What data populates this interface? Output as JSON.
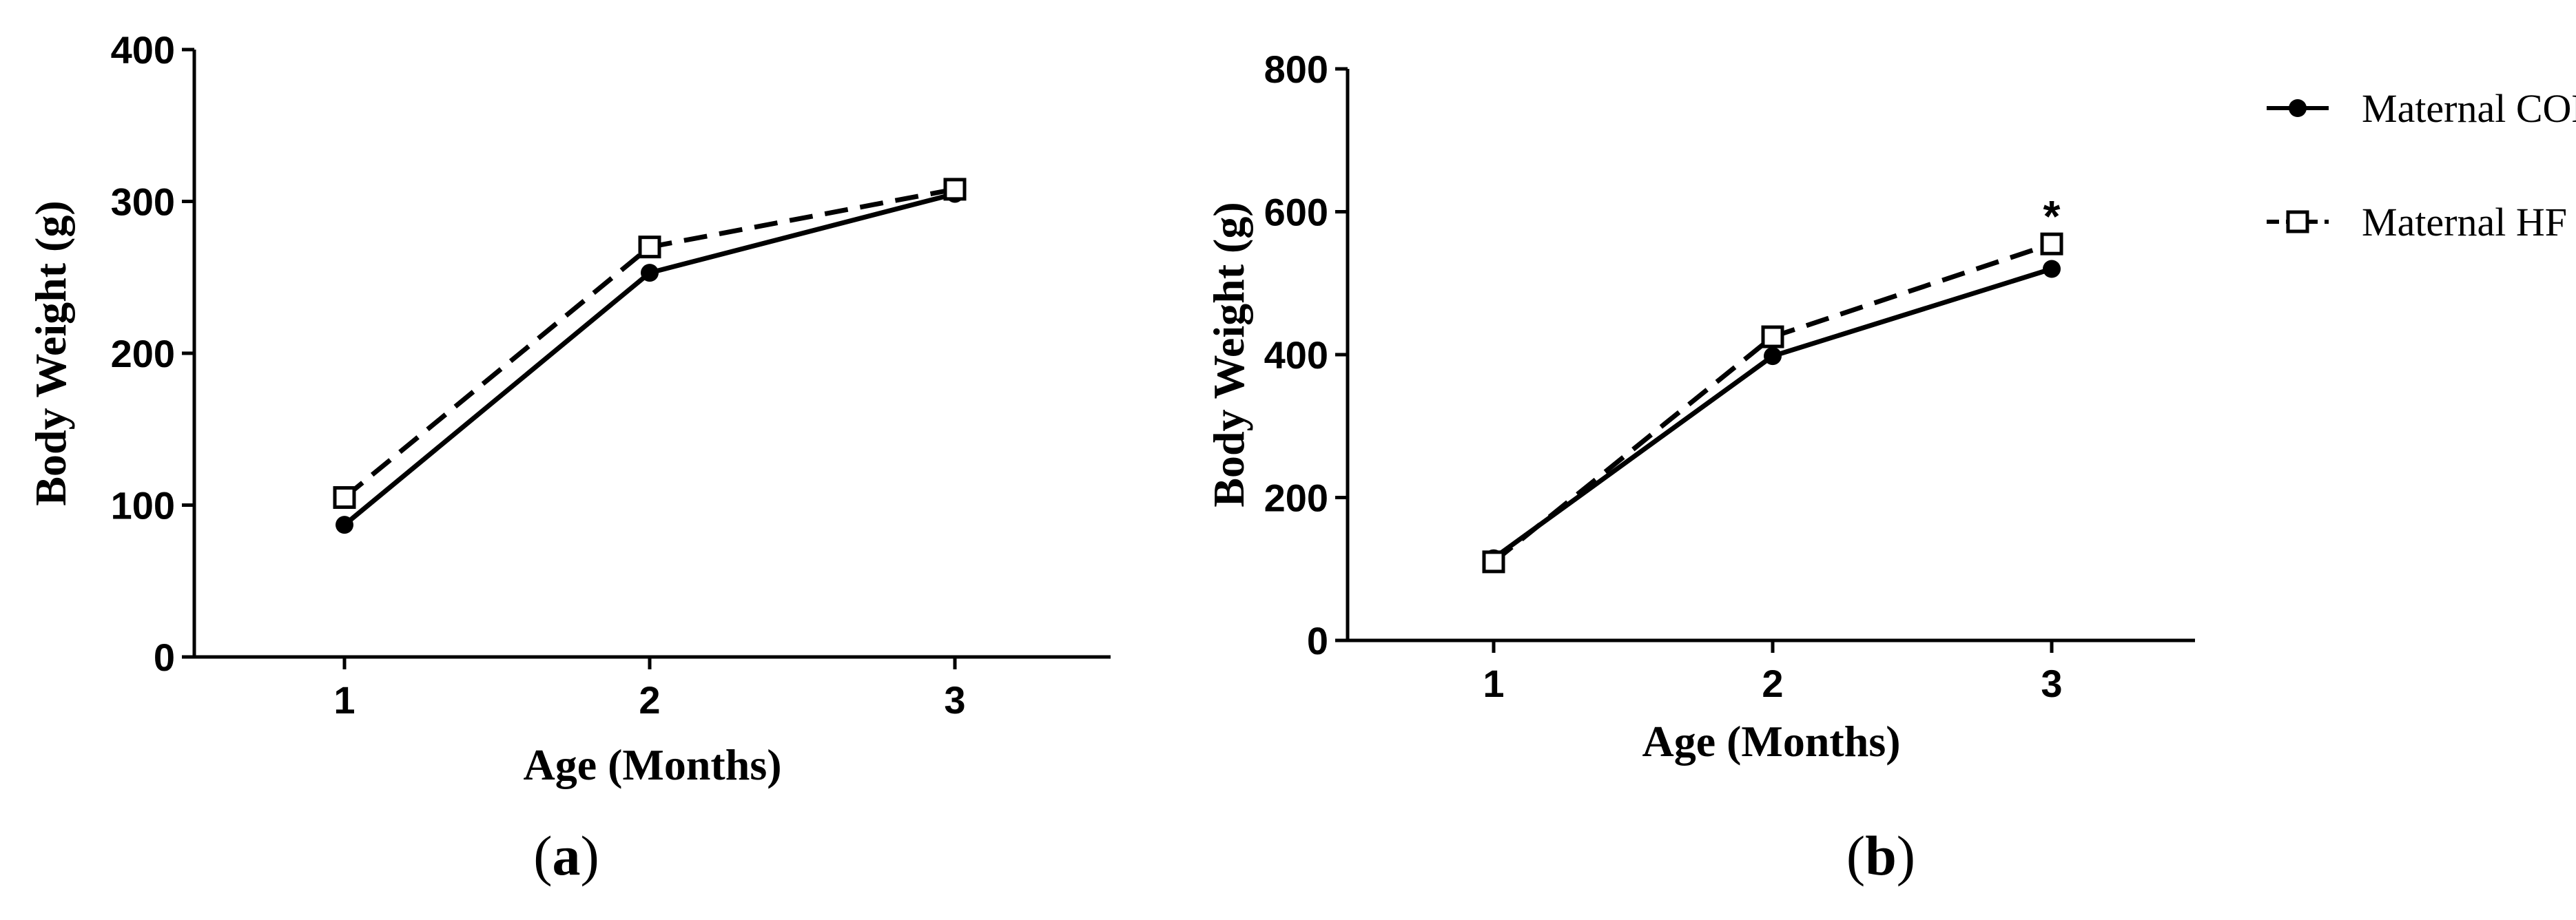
{
  "chart_data": [
    {
      "type": "line",
      "panel_label": "a",
      "x": [
        1,
        2,
        3
      ],
      "xlabel": "Age (Months)",
      "ylabel": "Body Weight (g)",
      "ylim": [
        0,
        400
      ],
      "yticks": [
        0,
        100,
        200,
        300,
        400
      ],
      "xticks": [
        1,
        2,
        3
      ],
      "series": [
        {
          "name": "Maternal CON",
          "values": [
            87,
            253,
            305
          ],
          "marker": "filled-circle",
          "line": "solid"
        },
        {
          "name": "Maternal HF",
          "values": [
            105,
            270,
            308
          ],
          "marker": "open-square",
          "line": "dashed"
        }
      ],
      "annotations": []
    },
    {
      "type": "line",
      "panel_label": "b",
      "x": [
        1,
        2,
        3
      ],
      "xlabel": "Age (Months)",
      "ylabel": "Body Weight (g)",
      "ylim": [
        0,
        800
      ],
      "yticks": [
        0,
        200,
        400,
        600,
        800
      ],
      "xticks": [
        1,
        2,
        3
      ],
      "series": [
        {
          "name": "Maternal CON",
          "values": [
            115,
            398,
            520
          ],
          "marker": "filled-circle",
          "line": "solid"
        },
        {
          "name": "Maternal HF",
          "values": [
            110,
            425,
            555
          ],
          "marker": "open-square",
          "line": "dashed"
        }
      ],
      "annotations": [
        {
          "text": "*",
          "x": 3,
          "series": "Maternal HF"
        }
      ],
      "legend": {
        "placement": "top-right",
        "items": [
          {
            "name": "Maternal CON",
            "marker": "filled-circle",
            "line": "solid"
          },
          {
            "name": "Maternal HF",
            "marker": "open-square",
            "line": "dashed"
          }
        ]
      }
    }
  ]
}
